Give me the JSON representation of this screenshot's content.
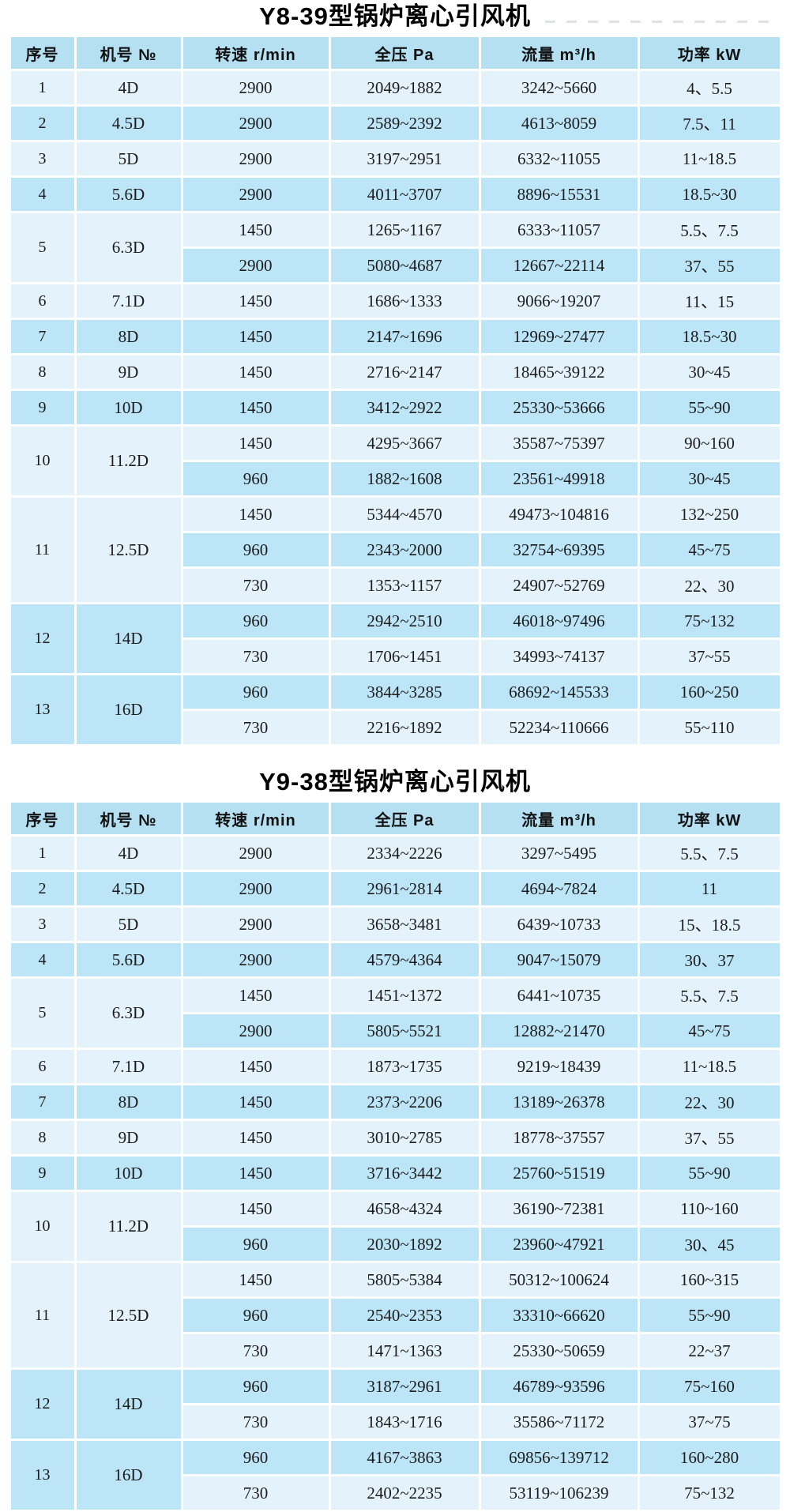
{
  "colors": {
    "header_bg": "#b5e0f2",
    "seq_column_bg": "#e4f3fb",
    "model_column_bg": "#a7daf0",
    "row_light_bg": "#e4f3fb",
    "row_dark_bg": "#bce5f7",
    "text": "#1b1b1b",
    "page_bg": "#ffffff"
  },
  "tables": [
    {
      "title": "Y8-39型锅炉离心引风机",
      "headers": [
        "序号",
        "机号 №",
        "转速 r/min",
        "全压 Pa",
        "流量 m³/h",
        "功率 kW"
      ],
      "rows": [
        {
          "seq": "1",
          "model": "4D",
          "subrows": [
            [
              "2900",
              "2049~1882",
              "3242~5660",
              "4、5.5"
            ]
          ]
        },
        {
          "seq": "2",
          "model": "4.5D",
          "subrows": [
            [
              "2900",
              "2589~2392",
              "4613~8059",
              "7.5、11"
            ]
          ]
        },
        {
          "seq": "3",
          "model": "5D",
          "subrows": [
            [
              "2900",
              "3197~2951",
              "6332~11055",
              "11~18.5"
            ]
          ]
        },
        {
          "seq": "4",
          "model": "5.6D",
          "subrows": [
            [
              "2900",
              "4011~3707",
              "8896~15531",
              "18.5~30"
            ]
          ]
        },
        {
          "seq": "5",
          "model": "6.3D",
          "subrows": [
            [
              "1450",
              "1265~1167",
              "6333~11057",
              "5.5、7.5"
            ],
            [
              "2900",
              "5080~4687",
              "12667~22114",
              "37、55"
            ]
          ]
        },
        {
          "seq": "6",
          "model": "7.1D",
          "subrows": [
            [
              "1450",
              "1686~1333",
              "9066~19207",
              "11、15"
            ]
          ]
        },
        {
          "seq": "7",
          "model": "8D",
          "subrows": [
            [
              "1450",
              "2147~1696",
              "12969~27477",
              "18.5~30"
            ]
          ]
        },
        {
          "seq": "8",
          "model": "9D",
          "subrows": [
            [
              "1450",
              "2716~2147",
              "18465~39122",
              "30~45"
            ]
          ]
        },
        {
          "seq": "9",
          "model": "10D",
          "subrows": [
            [
              "1450",
              "3412~2922",
              "25330~53666",
              "55~90"
            ]
          ]
        },
        {
          "seq": "10",
          "model": "11.2D",
          "subrows": [
            [
              "1450",
              "4295~3667",
              "35587~75397",
              "90~160"
            ],
            [
              "960",
              "1882~1608",
              "23561~49918",
              "30~45"
            ]
          ]
        },
        {
          "seq": "11",
          "model": "12.5D",
          "subrows": [
            [
              "1450",
              "5344~4570",
              "49473~104816",
              "132~250"
            ],
            [
              "960",
              "2343~2000",
              "32754~69395",
              "45~75"
            ],
            [
              "730",
              "1353~1157",
              "24907~52769",
              "22、30"
            ]
          ]
        },
        {
          "seq": "12",
          "model": "14D",
          "subrows": [
            [
              "960",
              "2942~2510",
              "46018~97496",
              "75~132"
            ],
            [
              "730",
              "1706~1451",
              "34993~74137",
              "37~55"
            ]
          ]
        },
        {
          "seq": "13",
          "model": "16D",
          "subrows": [
            [
              "960",
              "3844~3285",
              "68692~145533",
              "160~250"
            ],
            [
              "730",
              "2216~1892",
              "52234~110666",
              "55~110"
            ]
          ]
        }
      ]
    },
    {
      "title": "Y9-38型锅炉离心引风机",
      "headers": [
        "序号",
        "机号 №",
        "转速 r/min",
        "全压 Pa",
        "流量 m³/h",
        "功率 kW"
      ],
      "rows": [
        {
          "seq": "1",
          "model": "4D",
          "subrows": [
            [
              "2900",
              "2334~2226",
              "3297~5495",
              "5.5、7.5"
            ]
          ]
        },
        {
          "seq": "2",
          "model": "4.5D",
          "subrows": [
            [
              "2900",
              "2961~2814",
              "4694~7824",
              "11"
            ]
          ]
        },
        {
          "seq": "3",
          "model": "5D",
          "subrows": [
            [
              "2900",
              "3658~3481",
              "6439~10733",
              "15、18.5"
            ]
          ]
        },
        {
          "seq": "4",
          "model": "5.6D",
          "subrows": [
            [
              "2900",
              "4579~4364",
              "9047~15079",
              "30、37"
            ]
          ]
        },
        {
          "seq": "5",
          "model": "6.3D",
          "subrows": [
            [
              "1450",
              "1451~1372",
              "6441~10735",
              "5.5、7.5"
            ],
            [
              "2900",
              "5805~5521",
              "12882~21470",
              "45~75"
            ]
          ]
        },
        {
          "seq": "6",
          "model": "7.1D",
          "subrows": [
            [
              "1450",
              "1873~1735",
              "9219~18439",
              "11~18.5"
            ]
          ]
        },
        {
          "seq": "7",
          "model": "8D",
          "subrows": [
            [
              "1450",
              "2373~2206",
              "13189~26378",
              "22、30"
            ]
          ]
        },
        {
          "seq": "8",
          "model": "9D",
          "subrows": [
            [
              "1450",
              "3010~2785",
              "18778~37557",
              "37、55"
            ]
          ]
        },
        {
          "seq": "9",
          "model": "10D",
          "subrows": [
            [
              "1450",
              "3716~3442",
              "25760~51519",
              "55~90"
            ]
          ]
        },
        {
          "seq": "10",
          "model": "11.2D",
          "subrows": [
            [
              "1450",
              "4658~4324",
              "36190~72381",
              "110~160"
            ],
            [
              "960",
              "2030~1892",
              "23960~47921",
              "30、45"
            ]
          ]
        },
        {
          "seq": "11",
          "model": "12.5D",
          "subrows": [
            [
              "1450",
              "5805~5384",
              "50312~100624",
              "160~315"
            ],
            [
              "960",
              "2540~2353",
              "33310~66620",
              "55~90"
            ],
            [
              "730",
              "1471~1363",
              "25330~50659",
              "22~37"
            ]
          ]
        },
        {
          "seq": "12",
          "model": "14D",
          "subrows": [
            [
              "960",
              "3187~2961",
              "46789~93596",
              "75~160"
            ],
            [
              "730",
              "1843~1716",
              "35586~71172",
              "37~75"
            ]
          ]
        },
        {
          "seq": "13",
          "model": "16D",
          "subrows": [
            [
              "960",
              "4167~3863",
              "69856~139712",
              "160~280"
            ],
            [
              "730",
              "2402~2235",
              "53119~106239",
              "75~132"
            ]
          ]
        }
      ]
    }
  ]
}
